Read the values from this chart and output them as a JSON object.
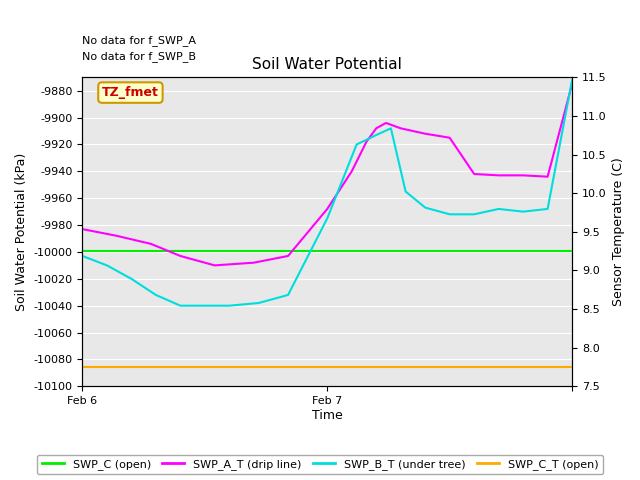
{
  "title": "Soil Water Potential",
  "ylabel_left": "Soil Water Potential (kPa)",
  "ylabel_right": "Sensor Temperature (C)",
  "xlabel": "Time",
  "no_data_text_1": "No data for f_SWP_A",
  "no_data_text_2": "No data for f_SWP_B",
  "annotation_text": "TZ_fmet",
  "annotation_color": "#cc0000",
  "annotation_bg": "#ffffcc",
  "annotation_border": "#cc9900",
  "ylim_left": [
    -10100,
    -9870
  ],
  "ylim_right": [
    7.5,
    11.5
  ],
  "yticks_left": [
    -10100,
    -10080,
    -10060,
    -10040,
    -10020,
    -10000,
    -9980,
    -9960,
    -9940,
    -9920,
    -9900,
    -9880
  ],
  "yticks_right": [
    7.5,
    8.0,
    8.5,
    9.0,
    9.5,
    10.0,
    10.5,
    11.0,
    11.5
  ],
  "background_color": "#e8e8e8",
  "grid_color": "#ffffff",
  "swp_c_color": "#00ee00",
  "swp_at_color": "#ff00ff",
  "swp_bt_color": "#00dddd",
  "swp_ct_color": "#ffaa00",
  "legend_labels": [
    "SWP_C (open)",
    "SWP_A_T (drip line)",
    "SWP_B_T (under tree)",
    "SWP_C_T (open)"
  ],
  "swp_c_value": -9999,
  "swp_ct_value": -10086,
  "xtick_positions": [
    0.0,
    0.5,
    1.0
  ],
  "xtick_labels": [
    "Feb 6",
    "Feb 7",
    ""
  ],
  "swp_at_x": [
    0.0,
    0.07,
    0.14,
    0.2,
    0.27,
    0.35,
    0.42,
    0.5,
    0.55,
    0.58,
    0.6,
    0.62,
    0.65,
    0.7,
    0.75,
    0.8,
    0.85,
    0.9,
    0.95,
    1.0
  ],
  "swp_at_y": [
    -9983,
    -9988,
    -9994,
    -10003,
    -10010,
    -10008,
    -10003,
    -9968,
    -9940,
    -9918,
    -9908,
    -9904,
    -9908,
    -9912,
    -9915,
    -9942,
    -9943,
    -9943,
    -9944,
    -9875
  ],
  "swp_bt_x": [
    0.0,
    0.05,
    0.1,
    0.15,
    0.2,
    0.25,
    0.3,
    0.36,
    0.42,
    0.5,
    0.56,
    0.6,
    0.63,
    0.66,
    0.7,
    0.75,
    0.8,
    0.85,
    0.9,
    0.95,
    1.0
  ],
  "swp_bt_y": [
    -10003,
    -10010,
    -10020,
    -10032,
    -10040,
    -10040,
    -10040,
    -10038,
    -10032,
    -9975,
    -9920,
    -9913,
    -9908,
    -9955,
    -9967,
    -9972,
    -9972,
    -9968,
    -9970,
    -9968,
    -9872
  ]
}
